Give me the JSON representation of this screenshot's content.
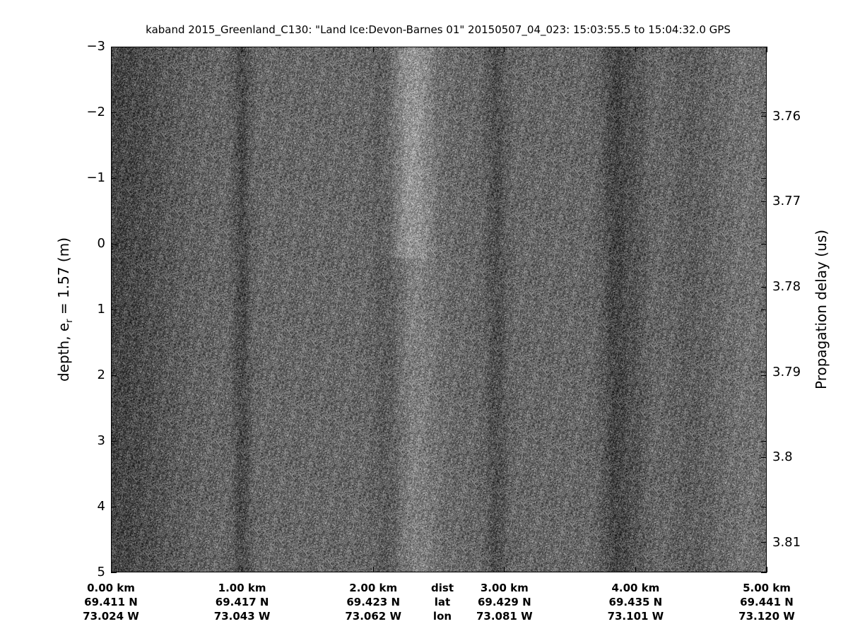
{
  "chart_data": {
    "type": "heatmap",
    "title": "kaband 2015_Greenland_C130: \"Land Ice:Devon-Barnes 01\"  20150507_04_023: 15:03:55.5 to 15:04:32.0 GPS",
    "ylabel_main": "depth, e",
    "ylabel_sub": "r",
    "ylabel_rest": " = 1.57 (m)",
    "y2label": "Propagation delay (us)",
    "colormap": "gray",
    "ylim": [
      -3,
      5
    ],
    "y_reversed": true,
    "yticks": [
      -3,
      -2,
      -1,
      0,
      1,
      2,
      3,
      4,
      5
    ],
    "y2lim": [
      3.7518,
      3.8135
    ],
    "y2ticks": [
      "3.76",
      "3.77",
      "3.78",
      "3.79",
      "3.8",
      "3.81"
    ],
    "xlim": [
      0,
      5
    ],
    "xticks": [
      {
        "dist": "0.00 km",
        "lat": "69.411 N",
        "lon": "73.024 W",
        "km": 0
      },
      {
        "dist": "1.00 km",
        "lat": "69.417 N",
        "lon": "73.043 W",
        "km": 1
      },
      {
        "dist": "2.00 km",
        "lat": "69.423 N",
        "lon": "73.062 W",
        "km": 2
      },
      {
        "dist": "3.00 km",
        "lat": "69.429 N",
        "lon": "73.081 W",
        "km": 3
      },
      {
        "dist": "4.00 km",
        "lat": "69.435 N",
        "lon": "73.101 W",
        "km": 4
      },
      {
        "dist": "5.00 km",
        "lat": "69.441 N",
        "lon": "73.120 W",
        "km": 5
      }
    ],
    "row_labels": {
      "dist": "dist",
      "lat": "lat",
      "lon": "lon",
      "km": 2.5
    }
  }
}
